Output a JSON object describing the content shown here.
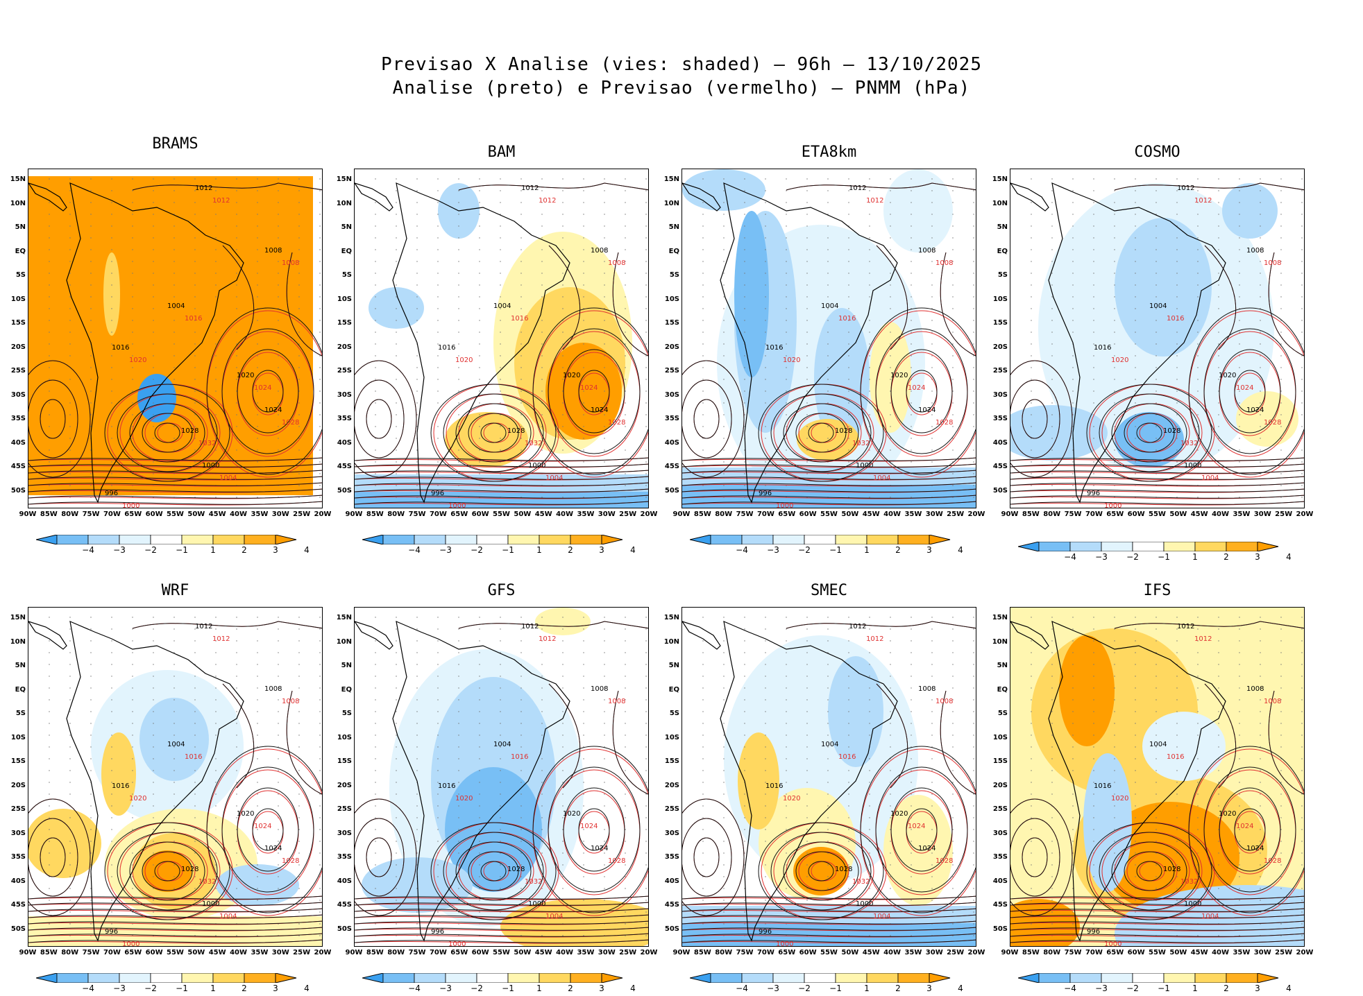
{
  "title": {
    "line1": "Previsao X Analise (vies: shaded) — 96h — 13/10/2025",
    "line2": "Analise (preto) e Previsao (vermelho) — PNMM (hPa)"
  },
  "lat_labels": [
    "15N",
    "10N",
    "5N",
    "EQ",
    "5S",
    "10S",
    "15S",
    "20S",
    "25S",
    "30S",
    "35S",
    "40S",
    "45S",
    "50S"
  ],
  "lon_labels": [
    "90W",
    "85W",
    "80W",
    "75W",
    "70W",
    "65W",
    "60W",
    "55W",
    "50W",
    "45W",
    "40W",
    "35W",
    "30W",
    "25W",
    "20W"
  ],
  "colorbar": {
    "labels": [
      "−4",
      "−3",
      "−2",
      "−1",
      "1",
      "2",
      "3",
      "4"
    ],
    "colors": [
      "#3aa0f0",
      "#78bff5",
      "#b4dcfa",
      "#e2f4fd",
      "#ffffff",
      "#fff6b0",
      "#ffd860",
      "#ffb020",
      "#ff9e00"
    ]
  },
  "panels": [
    {
      "name": "BRAMS",
      "bias": "warm-full"
    },
    {
      "name": "BAM",
      "bias": "warm-east"
    },
    {
      "name": "ETA8km",
      "bias": "cold"
    },
    {
      "name": "COSMO",
      "bias": "cold-light"
    },
    {
      "name": "WRF",
      "bias": "mixed-warm"
    },
    {
      "name": "GFS",
      "bias": "cold-south"
    },
    {
      "name": "SMEC",
      "bias": "mixed"
    },
    {
      "name": "IFS",
      "bias": "warm-strong"
    }
  ],
  "contour_labels_black": [
    "1012",
    "1008",
    "1004",
    "1016",
    "1020",
    "1024",
    "1028",
    "1000",
    "996"
  ],
  "contour_labels_red": [
    "1012",
    "1008",
    "1016",
    "1020",
    "1024",
    "1028",
    "1032",
    "1004",
    "1000"
  ]
}
